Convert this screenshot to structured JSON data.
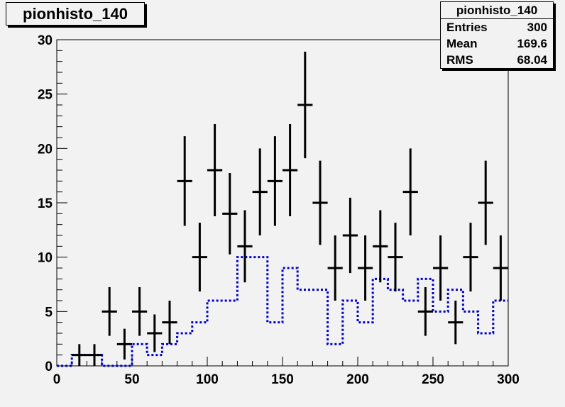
{
  "histogram": {
    "title": "pionhisto_140",
    "stats": {
      "title": "pionhisto_140",
      "rows": [
        {
          "label": "Entries",
          "value": "300"
        },
        {
          "label": "Mean",
          "value": "169.6"
        },
        {
          "label": "RMS",
          "value": "68.04"
        }
      ]
    }
  },
  "chart_data": {
    "type": "histogram",
    "title": "pionhisto_140",
    "xlim": [
      0,
      300
    ],
    "ylim": [
      0,
      30
    ],
    "x_ticks": [
      0,
      50,
      100,
      150,
      200,
      250,
      300
    ],
    "y_ticks": [
      0,
      5,
      10,
      15,
      20,
      25,
      30
    ],
    "bin_width": 10,
    "series": [
      {
        "style": "points-with-errorbars",
        "color": "#000000",
        "x": [
          5,
          15,
          25,
          35,
          45,
          55,
          65,
          75,
          85,
          95,
          105,
          115,
          125,
          135,
          145,
          155,
          165,
          175,
          185,
          195,
          205,
          215,
          225,
          235,
          245,
          255,
          265,
          275,
          285,
          295
        ],
        "values": [
          0,
          1,
          1,
          5,
          2,
          5,
          3,
          4,
          17,
          10,
          18,
          14,
          11,
          16,
          17,
          18,
          24,
          15,
          9,
          12,
          9,
          11,
          10,
          16,
          5,
          9,
          4,
          10,
          15,
          9
        ]
      },
      {
        "style": "dotted-step",
        "color": "#0000cc",
        "x": [
          5,
          15,
          25,
          35,
          45,
          55,
          65,
          75,
          85,
          95,
          105,
          115,
          125,
          135,
          145,
          155,
          165,
          175,
          185,
          195,
          205,
          215,
          225,
          235,
          245,
          255,
          265,
          275,
          285,
          295
        ],
        "values": [
          0,
          1,
          1,
          0,
          0,
          2,
          1,
          2,
          3,
          4,
          6,
          6,
          10,
          10,
          4,
          9,
          7,
          7,
          2,
          6,
          4,
          8,
          7,
          6,
          8,
          5,
          7,
          5,
          3,
          6
        ]
      }
    ]
  }
}
